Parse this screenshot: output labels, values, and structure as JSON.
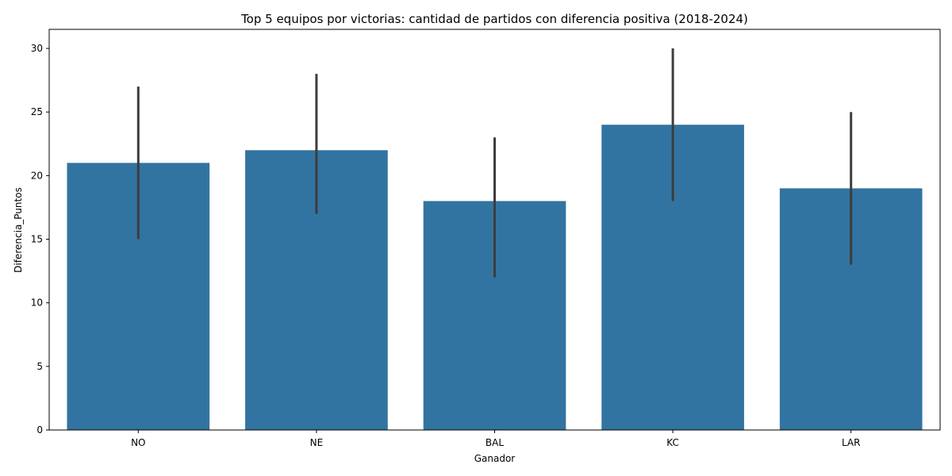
{
  "chart_data": {
    "type": "bar",
    "title": "Top 5 equipos por victorias: cantidad de partidos con diferencia positiva (2018-2024)",
    "xlabel": "Ganador",
    "ylabel": "Diferencia_Puntos",
    "categories": [
      "NO",
      "NE",
      "BAL",
      "KC",
      "LAR"
    ],
    "values": [
      21,
      22,
      18,
      24,
      19
    ],
    "error_low": [
      15,
      17,
      12,
      18,
      13
    ],
    "error_high": [
      27,
      28,
      23,
      30,
      25
    ],
    "ylim": [
      0,
      31.5
    ],
    "yticks": [
      0,
      5,
      10,
      15,
      20,
      25,
      30
    ],
    "grid": false,
    "bar_color": "#3274a1",
    "error_color": "#3d3d3d"
  }
}
